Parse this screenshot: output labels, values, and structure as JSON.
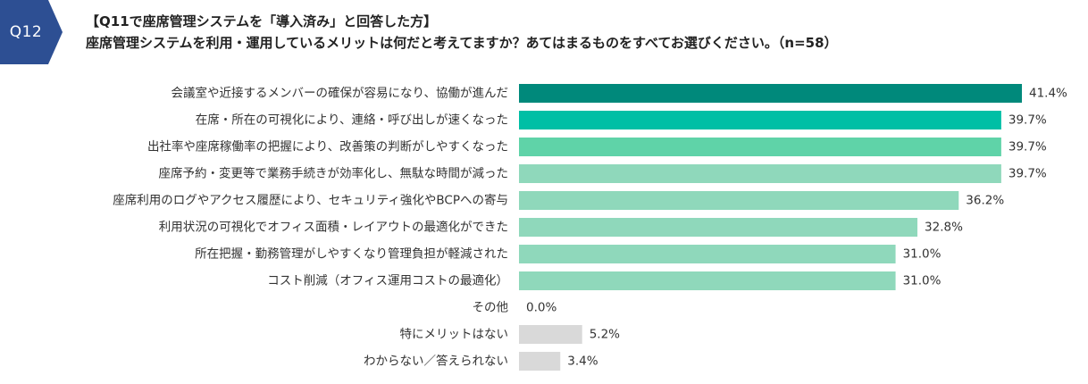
{
  "question_tag": "Q12",
  "heading": {
    "line1": "【Q11で座席管理システムを「導入済み」と回答した方】",
    "line2": "座席管理システムを利用・運用しているメリットは何だと考えてますか？あてはまるものをすべてお選びください。（n=58）"
  },
  "colors": {
    "tag": "#2d4f93",
    "bar_1": "#00897b",
    "bar_2": "#00bfa5",
    "bar_3": "#5fd3a8",
    "bar_other": "#8fd8bb",
    "bar_gray": "#d9d9d9"
  },
  "chart_data": {
    "type": "bar",
    "orientation": "horizontal",
    "unit": "%",
    "xlim": [
      0,
      41.4
    ],
    "grid": false,
    "categories": [
      "会議室や近接するメンバーの確保が容易になり、協働が進んだ",
      "在席・所在の可視化により、連絡・呼び出しが速くなった",
      "出社率や座席稼働率の把握により、改善策の判断がしやすくなった",
      "座席予約・変更等で業務手続きが効率化し、無駄な時間が減った",
      "座席利用のログやアクセス履歴により、セキュリティ強化やBCPへの寄与",
      "利用状況の可視化でオフィス面積・レイアウトの最適化ができた",
      "所在把握・勤務管理がしやすくなり管理負担が軽減された",
      "コスト削減（オフィス運用コストの最適化）",
      "その他",
      "特にメリットはない",
      "わからない／答えられない"
    ],
    "values": [
      41.4,
      39.7,
      39.7,
      39.7,
      36.2,
      32.8,
      31.0,
      31.0,
      0.0,
      5.2,
      3.4
    ],
    "value_labels": [
      "41.4%",
      "39.7%",
      "39.7%",
      "39.7%",
      "36.2%",
      "32.8%",
      "31.0%",
      "31.0%",
      "0.0%",
      "5.2%",
      "3.4%"
    ]
  }
}
